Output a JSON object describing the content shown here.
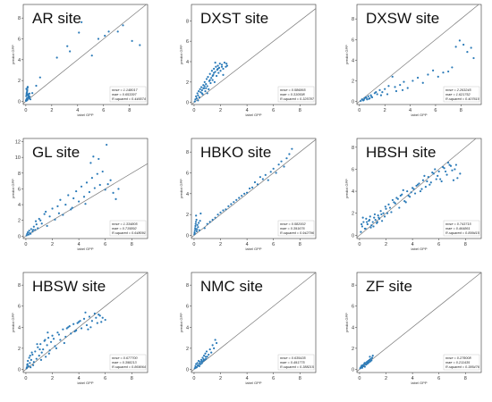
{
  "chart_data": [
    {
      "type": "scatter",
      "title": "AR site",
      "xlabel": "label GPP",
      "ylabel": "predict GPP",
      "xticks": [
        "0",
        "2",
        "4",
        "6",
        "8"
      ],
      "yticks": [
        "0",
        "2",
        "4",
        "6",
        "8"
      ],
      "xlim": [
        -0.2,
        9.4
      ],
      "ylim": [
        -0.3,
        9.3
      ],
      "grid": false,
      "stats": [
        "rmse = 1.148017",
        "mae = 0.653397",
        "R-squared = 0.446574"
      ],
      "identity_line": true,
      "x": [
        0.02,
        0.05,
        0.08,
        0.1,
        0.03,
        0.12,
        0.15,
        0.06,
        0.2,
        0.1,
        0.04,
        0.18,
        0.25,
        0.09,
        0.14,
        0.07,
        0.22,
        0.3,
        0.01,
        0.11,
        0.16,
        0.05,
        0.28,
        0.35,
        0.13,
        0.5,
        0.8,
        1.1,
        2.4,
        3.2,
        3.4,
        4.1,
        4.3,
        5.1,
        5.6,
        6.1,
        6.4,
        7.1,
        7.5,
        8.2,
        8.8
      ],
      "y": [
        0.05,
        0.2,
        0.1,
        0.3,
        0.5,
        0.15,
        0.6,
        0.8,
        0.4,
        1.0,
        1.2,
        0.7,
        0.3,
        0.9,
        1.4,
        0.25,
        0.55,
        0.45,
        0.1,
        1.1,
        0.35,
        0.65,
        0.75,
        0.2,
        1.3,
        0.8,
        1.5,
        2.3,
        4.2,
        5.3,
        4.8,
        6.6,
        7.6,
        4.4,
        6.0,
        6.3,
        6.7,
        6.7,
        7.3,
        5.8,
        5.4
      ]
    },
    {
      "type": "scatter",
      "title": "DXST site",
      "xlabel": "label GPP",
      "ylabel": "predict GPP",
      "xticks": [
        "0",
        "2",
        "4",
        "6",
        "8"
      ],
      "yticks": [
        "0",
        "2",
        "4",
        "6",
        "8"
      ],
      "xlim": [
        -0.2,
        9.2
      ],
      "ylim": [
        -0.2,
        9.6
      ],
      "grid": false,
      "stats": [
        "rmse = 0.586865",
        "mae = 0.310598",
        "R-squared = 0.325787"
      ],
      "identity_line": true,
      "x": [
        0.05,
        0.1,
        0.15,
        0.2,
        0.25,
        0.3,
        0.35,
        0.4,
        0.45,
        0.5,
        0.55,
        0.6,
        0.65,
        0.7,
        0.75,
        0.8,
        0.85,
        0.9,
        0.95,
        1.0,
        1.05,
        1.1,
        1.15,
        1.2,
        1.25,
        1.3,
        1.35,
        1.4,
        1.45,
        1.5,
        1.55,
        1.6,
        1.65,
        1.7,
        1.75,
        1.8,
        1.85,
        1.9,
        1.95,
        2.0,
        2.1,
        2.2,
        2.3,
        2.4,
        2.5,
        0.3,
        0.6,
        0.9,
        1.2,
        1.5,
        1.8,
        2.1,
        0.4,
        0.8,
        1.6,
        1.4,
        1.0,
        0.7,
        2.2,
        2.45
      ],
      "y": [
        0.1,
        0.3,
        0.6,
        0.4,
        0.9,
        0.7,
        1.1,
        0.5,
        1.3,
        1.0,
        1.5,
        1.2,
        0.8,
        1.7,
        1.4,
        2.0,
        1.1,
        1.8,
        2.3,
        1.6,
        2.5,
        1.3,
        2.1,
        2.8,
        1.9,
        2.4,
        3.1,
        2.2,
        2.7,
        3.3,
        2.0,
        3.0,
        3.5,
        2.6,
        3.2,
        3.6,
        2.9,
        3.4,
        3.8,
        3.1,
        3.7,
        3.3,
        3.9,
        3.5,
        3.6,
        0.2,
        0.9,
        1.4,
        2.2,
        2.9,
        3.3,
        3.5,
        0.5,
        1.6,
        3.9,
        2.6,
        0.9,
        1.4,
        2.7,
        3.8
      ]
    },
    {
      "type": "scatter",
      "title": "DXSW site",
      "xlabel": "label GPP",
      "ylabel": "predict GPP",
      "xticks": [
        "0",
        "2",
        "4",
        "6",
        "8"
      ],
      "yticks": [
        "0",
        "2",
        "4",
        "6",
        "8"
      ],
      "xlim": [
        -0.2,
        9.6
      ],
      "ylim": [
        -0.3,
        9.4
      ],
      "grid": false,
      "stats": [
        "rmse = 2.263245",
        "mae = 1.621752",
        "R-squared = 0.407610"
      ],
      "identity_line": true,
      "x": [
        0.1,
        0.2,
        0.3,
        0.4,
        0.5,
        0.6,
        0.7,
        0.8,
        0.9,
        1.0,
        1.2,
        1.4,
        1.6,
        1.8,
        2.0,
        2.3,
        2.6,
        2.9,
        3.2,
        3.5,
        3.8,
        4.2,
        4.6,
        5.0,
        5.4,
        5.8,
        6.2,
        6.6,
        7.0,
        7.3,
        7.6,
        7.9,
        8.2,
        8.5,
        8.8,
        9.0,
        0.35,
        0.55,
        0.75,
        0.95,
        1.3,
        1.7,
        2.2,
        2.8,
        3.4
      ],
      "y": [
        0.05,
        0.2,
        0.1,
        0.3,
        0.4,
        0.2,
        0.5,
        0.3,
        0.6,
        0.4,
        0.8,
        0.7,
        1.1,
        0.9,
        1.2,
        1.5,
        2.4,
        1.0,
        1.6,
        1.9,
        1.3,
        2.0,
        2.3,
        1.8,
        2.6,
        3.0,
        2.4,
        2.8,
        2.9,
        3.3,
        5.3,
        5.9,
        5.5,
        4.8,
        5.2,
        4.2,
        0.15,
        0.35,
        0.25,
        0.45,
        0.9,
        0.6,
        0.7,
        1.4,
        1.1
      ]
    },
    {
      "type": "scatter",
      "title": "GL site",
      "xlabel": "label GPP",
      "ylabel": "predict GPP",
      "xticks": [
        "0",
        "2",
        "4",
        "6",
        "8"
      ],
      "yticks": [
        "0",
        "2",
        "4",
        "6",
        "8",
        "10",
        "12"
      ],
      "xlim": [
        -0.2,
        9.2
      ],
      "ylim": [
        -0.3,
        12.4
      ],
      "grid": false,
      "stats": [
        "rmse = 1.334805",
        "mae = 0.715892",
        "R-squared = 0.648091"
      ],
      "identity_line": true,
      "x": [
        0.05,
        0.1,
        0.15,
        0.2,
        0.25,
        0.3,
        0.4,
        0.5,
        0.6,
        0.7,
        0.8,
        0.9,
        1.0,
        1.2,
        1.4,
        1.6,
        1.8,
        2.0,
        2.2,
        2.4,
        2.6,
        2.8,
        3.0,
        3.2,
        3.4,
        3.6,
        3.8,
        4.0,
        4.2,
        4.4,
        4.6,
        4.8,
        5.0,
        5.2,
        5.4,
        5.6,
        5.8,
        6.0,
        6.2,
        6.4,
        6.6,
        6.8,
        7.0,
        0.35,
        0.55,
        0.75,
        1.1,
        1.5,
        2.5,
        3.5,
        4.5,
        5.5,
        5.1,
        4.9,
        6.1
      ],
      "y": [
        0.1,
        0.3,
        0.5,
        0.2,
        0.7,
        0.4,
        0.9,
        0.6,
        1.2,
        0.8,
        1.5,
        1.0,
        2.2,
        1.6,
        2.8,
        1.3,
        2.5,
        3.5,
        2.1,
        3.8,
        4.6,
        2.7,
        4.0,
        5.2,
        3.4,
        4.8,
        5.7,
        4.4,
        6.3,
        5.0,
        6.8,
        5.6,
        7.4,
        6.1,
        7.9,
        6.5,
        8.2,
        5.9,
        6.6,
        7.1,
        5.5,
        4.7,
        6.0,
        0.3,
        0.8,
        1.9,
        2.0,
        3.1,
        2.9,
        3.6,
        4.1,
        9.8,
        10.1,
        9.3,
        11.6
      ]
    },
    {
      "type": "scatter",
      "title": "HBKO site",
      "xlabel": "label GPP",
      "ylabel": "predict GPP",
      "xticks": [
        "0",
        "2",
        "4",
        "6",
        "8"
      ],
      "yticks": [
        "0",
        "2",
        "4",
        "6",
        "8"
      ],
      "xlim": [
        -0.2,
        9.2
      ],
      "ylim": [
        -0.3,
        9.3
      ],
      "grid": false,
      "stats": [
        "rmse = 0.582002",
        "mae = 0.391676",
        "R-squared = 0.942796"
      ],
      "identity_line": true,
      "x": [
        0.02,
        0.04,
        0.06,
        0.08,
        0.1,
        0.12,
        0.14,
        0.16,
        0.18,
        0.2,
        0.25,
        0.3,
        0.35,
        0.4,
        0.45,
        0.5,
        0.8,
        1.2,
        1.6,
        2.0,
        2.4,
        2.8,
        3.2,
        3.6,
        4.0,
        4.4,
        4.8,
        5.2,
        5.4,
        5.6,
        5.8,
        6.0,
        6.2,
        6.4,
        6.6,
        6.8,
        7.0,
        7.2,
        7.4,
        0.05,
        0.15,
        0.22,
        1.0,
        1.4,
        1.8,
        2.2,
        2.6,
        3.0,
        3.4,
        3.8,
        4.2,
        4.6,
        5.0
      ],
      "y": [
        0.1,
        0.3,
        0.5,
        0.7,
        0.9,
        1.1,
        1.3,
        0.6,
        1.5,
        0.4,
        1.0,
        0.8,
        1.2,
        0.5,
        1.4,
        2.1,
        0.7,
        1.3,
        1.7,
        2.2,
        2.5,
        3.0,
        3.4,
        3.8,
        4.1,
        4.6,
        4.9,
        5.4,
        5.8,
        5.3,
        6.1,
        6.4,
        6.0,
        6.8,
        7.1,
        6.6,
        7.4,
        7.8,
        8.3,
        0.2,
        1.9,
        0.6,
        1.1,
        1.5,
        2.0,
        2.4,
        2.8,
        3.2,
        3.6,
        4.0,
        4.5,
        5.1,
        5.6
      ]
    },
    {
      "type": "scatter",
      "title": "HBSH site",
      "xlabel": "label GPP",
      "ylabel": "predict GPP",
      "xticks": [
        "0",
        "2",
        "4",
        "6",
        "8"
      ],
      "yticks": [
        "0",
        "2",
        "4",
        "6",
        "8"
      ],
      "xlim": [
        -0.2,
        9.2
      ],
      "ylim": [
        -0.3,
        8.8
      ],
      "grid": false,
      "stats": [
        "rmse = 0.743715",
        "mae = 0.464861",
        "R-squared = 0.899415"
      ],
      "identity_line": true,
      "x": [
        0.1,
        0.2,
        0.3,
        0.4,
        0.5,
        0.6,
        0.7,
        0.8,
        0.9,
        1.0,
        1.1,
        1.2,
        1.3,
        1.4,
        1.5,
        1.6,
        1.7,
        1.8,
        1.9,
        2.0,
        2.2,
        2.4,
        2.6,
        2.8,
        3.0,
        3.2,
        3.4,
        3.6,
        3.8,
        4.0,
        4.2,
        4.4,
        4.6,
        4.8,
        5.0,
        5.2,
        5.4,
        5.6,
        5.8,
        6.0,
        6.2,
        6.4,
        6.6,
        6.8,
        7.0,
        7.2,
        7.4,
        7.6,
        0.15,
        0.45,
        0.75,
        1.05,
        1.35,
        1.65,
        1.95,
        2.3,
        2.7,
        3.1,
        3.5,
        3.9,
        4.3,
        4.7,
        5.1,
        5.5,
        5.9,
        6.3,
        6.7,
        7.1,
        0.25,
        0.55,
        0.85,
        1.15,
        1.45,
        2.1,
        2.5,
        2.9,
        3.3,
        3.7,
        4.1,
        4.5,
        4.9,
        5.3,
        5.7,
        6.1,
        6.5,
        6.9,
        7.3
      ],
      "y": [
        0.3,
        0.8,
        1.2,
        0.6,
        1.5,
        1.0,
        1.3,
        1.7,
        0.9,
        1.2,
        1.6,
        1.4,
        1.1,
        1.8,
        1.5,
        2.2,
        1.3,
        2.0,
        1.7,
        2.4,
        2.8,
        2.1,
        3.0,
        3.4,
        2.5,
        3.7,
        3.1,
        4.0,
        3.5,
        4.3,
        3.8,
        4.6,
        4.0,
        5.0,
        4.4,
        5.3,
        4.8,
        5.6,
        5.1,
        5.8,
        4.9,
        6.1,
        5.5,
        6.4,
        5.9,
        6.0,
        5.2,
        5.6,
        1.0,
        0.6,
        1.4,
        0.8,
        1.2,
        1.9,
        2.6,
        2.5,
        2.9,
        3.6,
        3.0,
        3.9,
        4.5,
        4.2,
        4.9,
        5.7,
        5.4,
        6.2,
        6.6,
        5.0,
        1.6,
        1.2,
        0.7,
        1.9,
        1.6,
        2.0,
        3.2,
        3.3,
        4.1,
        3.6,
        4.2,
        4.7,
        5.4,
        4.6,
        6.0,
        5.1,
        5.8,
        6.3,
        6.4
      ]
    },
    {
      "type": "scatter",
      "title": "HBSW site",
      "xlabel": "label GPP",
      "ylabel": "predict GPP",
      "xticks": [
        "0",
        "2",
        "4",
        "6",
        "8"
      ],
      "yticks": [
        "0",
        "2",
        "4",
        "6",
        "8"
      ],
      "xlim": [
        -0.2,
        9.2
      ],
      "ylim": [
        -0.3,
        9.2
      ],
      "grid": false,
      "stats": [
        "rmse = 0.677700",
        "mae = 0.398213",
        "R-squared = 0.869064"
      ],
      "identity_line": true,
      "x": [
        0.05,
        0.1,
        0.15,
        0.2,
        0.25,
        0.3,
        0.35,
        0.4,
        0.5,
        0.6,
        0.7,
        0.8,
        0.9,
        1.0,
        1.1,
        1.2,
        1.3,
        1.4,
        1.5,
        1.6,
        1.7,
        1.8,
        1.9,
        2.0,
        2.2,
        2.4,
        2.6,
        2.8,
        3.0,
        3.2,
        3.4,
        3.6,
        3.8,
        4.0,
        4.2,
        4.4,
        4.6,
        4.8,
        5.0,
        5.2,
        5.4,
        5.6,
        5.8,
        6.0,
        0.12,
        0.32,
        0.55,
        0.85,
        1.15,
        1.45,
        1.75,
        2.1,
        2.5,
        2.9,
        3.3,
        3.7,
        4.1,
        4.5,
        4.9,
        5.3,
        5.7,
        0.08,
        0.45,
        1.05,
        1.65,
        2.3,
        3.1,
        3.9,
        4.7,
        5.5
      ],
      "y": [
        0.1,
        0.4,
        0.8,
        0.3,
        1.1,
        0.6,
        0.2,
        0.9,
        1.4,
        0.7,
        1.7,
        1.0,
        2.1,
        1.3,
        2.4,
        1.6,
        1.9,
        2.7,
        1.2,
        2.3,
        3.0,
        1.8,
        2.6,
        3.2,
        2.2,
        3.5,
        2.8,
        3.8,
        3.1,
        4.0,
        3.4,
        4.3,
        3.7,
        4.5,
        3.9,
        4.8,
        4.2,
        5.0,
        4.6,
        5.3,
        4.4,
        5.1,
        4.9,
        4.7,
        0.5,
        1.3,
        0.4,
        2.4,
        0.9,
        2.8,
        1.5,
        2.9,
        3.3,
        2.5,
        4.1,
        3.6,
        4.6,
        5.4,
        4.0,
        4.9,
        4.5,
        0.2,
        1.6,
        1.9,
        3.5,
        2.0,
        3.9,
        4.4,
        3.8,
        5.2
      ]
    },
    {
      "type": "scatter",
      "title": "NMC site",
      "xlabel": "label GPP",
      "ylabel": "predict GPP",
      "xticks": [
        "0",
        "2",
        "4",
        "6",
        "8"
      ],
      "yticks": [
        "0",
        "2",
        "4",
        "6",
        "8"
      ],
      "xlim": [
        -0.2,
        9.2
      ],
      "ylim": [
        -0.3,
        9.2
      ],
      "grid": false,
      "stats": [
        "rmse = 0.635435",
        "mae = 0.491775",
        "R-squared = 0.388215"
      ],
      "identity_line": true,
      "x": [
        0.05,
        0.1,
        0.15,
        0.2,
        0.25,
        0.3,
        0.35,
        0.4,
        0.45,
        0.5,
        0.55,
        0.6,
        0.65,
        0.7,
        0.75,
        0.8,
        0.85,
        0.9,
        0.95,
        1.0,
        1.1,
        1.2,
        1.3,
        1.4,
        1.5,
        1.6,
        1.7,
        0.12,
        0.28,
        0.42,
        0.58,
        0.72,
        0.88
      ],
      "y": [
        0.1,
        0.3,
        0.5,
        0.2,
        0.6,
        0.4,
        0.8,
        0.3,
        0.7,
        0.5,
        0.9,
        0.6,
        1.1,
        0.8,
        1.3,
        0.9,
        1.5,
        1.0,
        1.7,
        1.2,
        1.4,
        1.9,
        1.6,
        2.3,
        2.0,
        2.8,
        2.5,
        0.15,
        0.35,
        0.55,
        0.75,
        0.95,
        1.2
      ]
    },
    {
      "type": "scatter",
      "title": "ZF site",
      "xlabel": "label GPP",
      "ylabel": "predict GPP",
      "xticks": [
        "0",
        "2",
        "4",
        "6",
        "8"
      ],
      "yticks": [
        "0",
        "2",
        "4",
        "6",
        "8"
      ],
      "xlim": [
        -0.2,
        9.2
      ],
      "ylim": [
        -0.3,
        9.2
      ],
      "grid": false,
      "stats": [
        "rmse = 0.278008",
        "mae = 0.211435",
        "R-squared = 0.385476"
      ],
      "identity_line": true,
      "x": [
        0.05,
        0.1,
        0.15,
        0.2,
        0.25,
        0.3,
        0.35,
        0.4,
        0.45,
        0.5,
        0.55,
        0.6,
        0.65,
        0.7,
        0.75,
        0.8,
        0.85,
        0.9,
        0.95,
        1.0,
        0.18,
        0.38,
        0.62,
        0.78
      ],
      "y": [
        0.1,
        0.2,
        0.35,
        0.15,
        0.4,
        0.3,
        0.5,
        0.25,
        0.6,
        0.45,
        0.7,
        0.55,
        0.8,
        0.65,
        0.9,
        0.75,
        1.0,
        0.85,
        1.1,
        1.3,
        0.3,
        0.6,
        0.7,
        1.2
      ]
    }
  ],
  "colors": {
    "points": "#2a7ab8",
    "identity_line": "#7a7a7a",
    "axis": "#333333"
  }
}
